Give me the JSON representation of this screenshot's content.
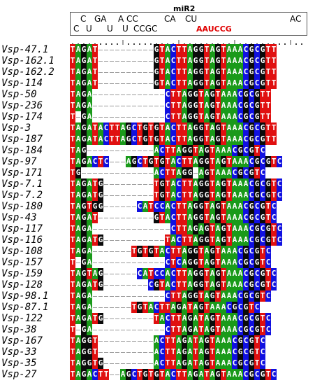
{
  "header": {
    "title": "miR2",
    "top_segments": [
      "C",
      "GA",
      "A",
      "CC",
      "CA",
      "CU",
      "AC"
    ],
    "bottom_segments": [
      "C",
      "U",
      "U",
      "U",
      "CCGC",
      "AAUCCG"
    ]
  },
  "ruler": ". . . . | . . . . | . . . . | . . . . | . . . . | . . . . | . .",
  "colors": {
    "T": "#e01010",
    "A": "#1a9a1a",
    "G": "#0a0a0a",
    "C": "#1010e0",
    "gap": "#9a9a9a",
    "red": "#e00000"
  },
  "sequences": [
    {
      "name": "Vsp-47.1",
      "seq": "TAGAT----------GTACTTAGGTAGTAAACGCGTT"
    },
    {
      "name": "Vsp-162.1",
      "seq": "TAGAT----------GTACTTAGGTAGTAAACGCGTT"
    },
    {
      "name": "Vsp-162.2",
      "seq": "TAGAT----------GTACTTAGGTAGTAAACGCGTT"
    },
    {
      "name": "Vsp-114",
      "seq": "TAGAT----------GTACTTAGGTAGTAAACGCGTT"
    },
    {
      "name": "Vsp-50",
      "seq": "TAGA-------------CTTAGGTAGTAAACGCGTT"
    },
    {
      "name": "Vsp-236",
      "seq": "TAGA-------------CTTAGGTAGTAAACGCGTT"
    },
    {
      "name": "Vsp-174",
      "seq": "T-GA-------------CTTAGGTAGTAAACGCGTT"
    },
    {
      "name": "Vsp-3",
      "seq": "TAGATACTTAGCTGTGTACTTAGGTAGTAAACGCGTT"
    },
    {
      "name": "Vsp-187",
      "seq": "TAGATACTTAGCTGTGTACTTAGGTAGTAAACGCGTT"
    },
    {
      "name": "Vsp-184",
      "seq": "TAG------------ACTTAGGTAGTAAACGCGTC"
    },
    {
      "name": "Vsp-97",
      "seq": "TAGACTC---AGCTGTGTACTTAGGTAGTAAACGCGTC"
    },
    {
      "name": "Vsp-171",
      "seq": "TG-------------ACTTAGG-AGTAAACGCGTC"
    },
    {
      "name": "Vsp-7.1",
      "seq": "TAGATG---------TGTACTTAGGTAGTAAACGCGTC"
    },
    {
      "name": "Vsp-7.2",
      "seq": "TAGATG---------TGTACTTAGGTAGTAAACGCGTC"
    },
    {
      "name": "Vsp-180",
      "seq": "TAGTGG------CATCCACTTAGGTAGTAAACGCGTC"
    },
    {
      "name": "Vsp-43",
      "seq": "TAGAT----------GTACTTAGGTAGTAAACGCGTC"
    },
    {
      "name": "Vsp-117",
      "seq": "TAGA--------------CTTAGAGTAGTAAACGCGTC"
    },
    {
      "name": "Vsp-116",
      "seq": "TAGATG-----------TACTTAGGTAGTAAACGCGTC"
    },
    {
      "name": "Vsp-108",
      "seq": "TAGA-------TGTGTACTTAGGTAGTAAACGCGTC"
    },
    {
      "name": "Vsp-157",
      "seq": "T-GA-------------CTCAGGTAGTAAACGCGTC"
    },
    {
      "name": "Vsp-159",
      "seq": "TAGTAG------CATCCACTTAGGTAGTAAACGCGTC"
    },
    {
      "name": "Vsp-128",
      "seq": "TAGATG--------CGTACTTAGGTAGTAAACGCGTC"
    },
    {
      "name": "Vsp-98.1",
      "seq": "TAGA-------------CTTAGGTAGTAAACGCGTC"
    },
    {
      "name": "Vsp-87.1",
      "seq": "TAGA-------TGTACTTAGATAGTAAACGCGTC"
    },
    {
      "name": "Vsp-122",
      "seq": "TAGATG---------TACTTAGATAGTAAACGCGTC"
    },
    {
      "name": "Vsp-38",
      "seq": "T-GA-------------CTTAGATAGTAAACGCGTC"
    },
    {
      "name": "Vsp-167",
      "seq": "TAGGT----------ACTTAGATAGTAAACGCGTC"
    },
    {
      "name": "Vsp-33",
      "seq": "TAGGT----------ACTTAGATAGTAAACGCGTC"
    },
    {
      "name": "Vsp-35",
      "seq": "TAGGTG---------ACTTAGATAGTAAACGCGTC"
    },
    {
      "name": "Vsp-27",
      "seq": "TAGACTT--AGCTGTGTACTTAGATAGTAAACGCGTC"
    }
  ]
}
